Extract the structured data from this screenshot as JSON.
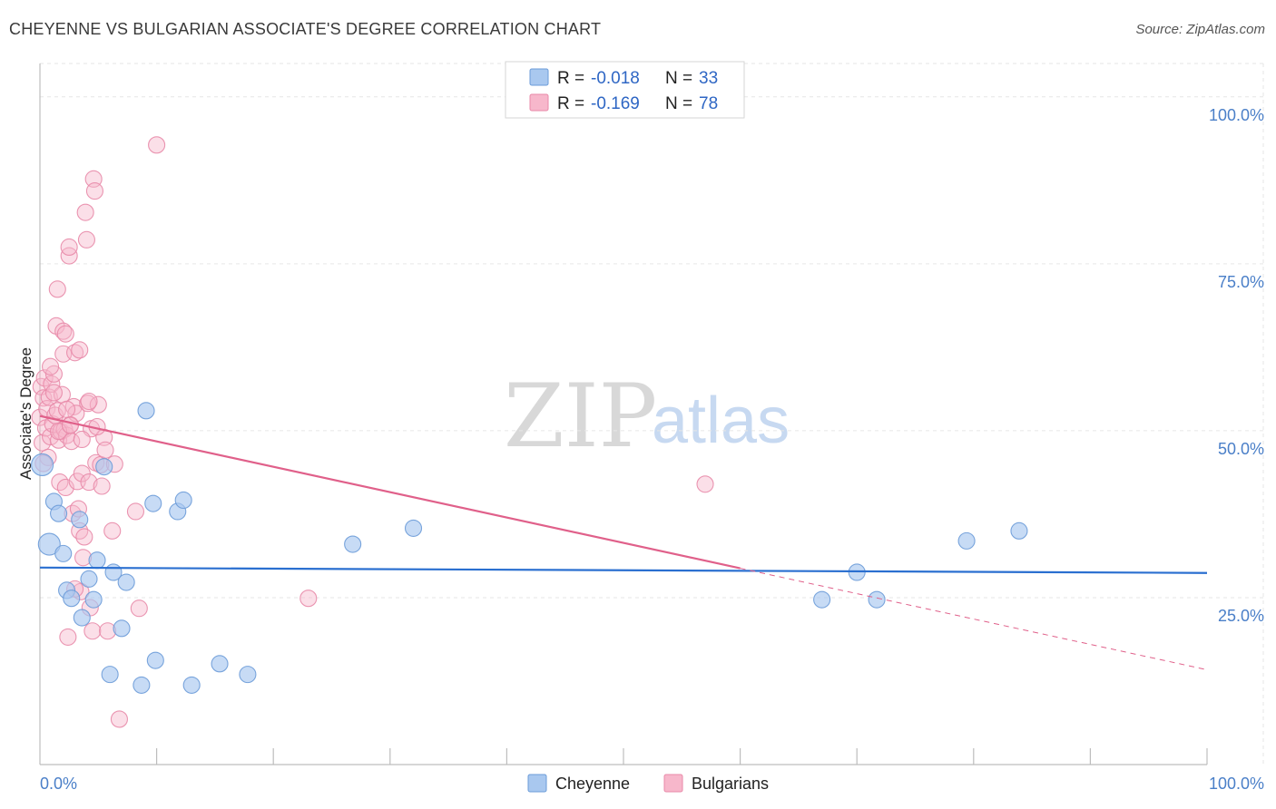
{
  "title": "CHEYENNE VS BULGARIAN ASSOCIATE'S DEGREE CORRELATION CHART",
  "source": "Source: ZipAtlas.com",
  "watermark": {
    "zip": "ZIP",
    "atlas": "atlas"
  },
  "colors": {
    "cheyenne_fill": "#a9c8ef",
    "cheyenne_stroke": "#6b9bd8",
    "cheyenne_line": "#2a6fd0",
    "bulgarian_fill": "#f7b7cb",
    "bulgarian_stroke": "#e88aa8",
    "bulgarian_line": "#e0608a",
    "axis_label": "#4a7fc8",
    "grid": "#e6e6e6"
  },
  "legend": {
    "rows": [
      {
        "r_label": "R = ",
        "r_value": "-0.018",
        "n_label": "N = ",
        "n_value": "33"
      },
      {
        "r_label": "R = ",
        "r_value": "-0.169",
        "n_label": "N = ",
        "n_value": "78"
      }
    ]
  },
  "bottom_legend": {
    "cheyenne": "Cheyenne",
    "bulgarians": "Bulgarians"
  },
  "chart_data": {
    "type": "scatter",
    "title": "CHEYENNE VS BULGARIAN ASSOCIATE'S DEGREE CORRELATION CHART",
    "xlabel": "",
    "ylabel": "Associate's Degree",
    "xlim": [
      0,
      100
    ],
    "ylim": [
      0,
      105
    ],
    "x_tick_labels": {
      "left": "0.0%",
      "right": "100.0%"
    },
    "y_ticks": [
      {
        "value": 25,
        "label": "25.0%"
      },
      {
        "value": 50,
        "label": "50.0%"
      },
      {
        "value": 75,
        "label": "75.0%"
      },
      {
        "value": 100,
        "label": "100.0%"
      }
    ],
    "grid": true,
    "legend_position": "top-center",
    "series": [
      {
        "name": "Cheyenne",
        "R": -0.018,
        "N": 33,
        "trend": {
          "x0": 0,
          "y0": 29.5,
          "x1": 100,
          "y1": 28.7,
          "dashed_after": null
        },
        "points": [
          [
            0.2,
            44.9
          ],
          [
            0.8,
            33.0
          ],
          [
            1.2,
            39.4
          ],
          [
            1.6,
            37.6
          ],
          [
            2.0,
            31.6
          ],
          [
            2.3,
            26.1
          ],
          [
            2.7,
            24.9
          ],
          [
            3.4,
            36.7
          ],
          [
            3.6,
            22.0
          ],
          [
            4.2,
            27.8
          ],
          [
            4.6,
            24.7
          ],
          [
            4.9,
            30.6
          ],
          [
            5.5,
            44.6
          ],
          [
            6.0,
            13.5
          ],
          [
            6.3,
            28.8
          ],
          [
            7.0,
            20.4
          ],
          [
            7.4,
            27.3
          ],
          [
            8.7,
            11.9
          ],
          [
            9.1,
            53.0
          ],
          [
            9.7,
            39.1
          ],
          [
            9.9,
            15.6
          ],
          [
            11.8,
            37.9
          ],
          [
            12.3,
            39.6
          ],
          [
            13.0,
            11.9
          ],
          [
            15.4,
            15.1
          ],
          [
            17.8,
            13.5
          ],
          [
            26.8,
            33.0
          ],
          [
            32.0,
            35.4
          ],
          [
            67.0,
            24.7
          ],
          [
            70.0,
            28.8
          ],
          [
            71.7,
            24.7
          ],
          [
            79.4,
            33.5
          ],
          [
            83.9,
            35.0
          ]
        ]
      },
      {
        "name": "Bulgarians",
        "R": -0.169,
        "N": 78,
        "trend": {
          "x0": 0,
          "y0": 52.2,
          "x1": 60,
          "y1": 29.4,
          "dashed_to_x": 100,
          "dashed_to_y": 14.2
        },
        "points": [
          [
            0.0,
            52.0
          ],
          [
            0.1,
            56.6
          ],
          [
            0.2,
            48.2
          ],
          [
            0.3,
            54.9
          ],
          [
            0.4,
            57.9
          ],
          [
            0.5,
            50.4
          ],
          [
            0.6,
            53.3
          ],
          [
            0.7,
            46.0
          ],
          [
            0.8,
            55.0
          ],
          [
            0.9,
            49.1
          ],
          [
            1.0,
            57.0
          ],
          [
            1.1,
            51.0
          ],
          [
            1.2,
            58.5
          ],
          [
            1.3,
            52.3
          ],
          [
            1.4,
            65.7
          ],
          [
            1.5,
            53.0
          ],
          [
            1.5,
            71.2
          ],
          [
            1.6,
            48.6
          ],
          [
            1.7,
            42.3
          ],
          [
            1.8,
            49.9
          ],
          [
            1.9,
            55.4
          ],
          [
            2.0,
            61.5
          ],
          [
            2.0,
            64.9
          ],
          [
            2.1,
            50.2
          ],
          [
            2.2,
            64.5
          ],
          [
            2.2,
            41.5
          ],
          [
            2.3,
            49.3
          ],
          [
            2.4,
            19.1
          ],
          [
            2.5,
            76.2
          ],
          [
            2.5,
            77.5
          ],
          [
            2.6,
            50.9
          ],
          [
            2.7,
            48.4
          ],
          [
            2.8,
            37.6
          ],
          [
            2.9,
            53.6
          ],
          [
            3.0,
            61.7
          ],
          [
            3.1,
            52.6
          ],
          [
            3.2,
            42.4
          ],
          [
            3.3,
            38.3
          ],
          [
            3.4,
            35.0
          ],
          [
            3.5,
            25.9
          ],
          [
            3.6,
            43.6
          ],
          [
            3.7,
            31.0
          ],
          [
            3.8,
            34.1
          ],
          [
            3.9,
            82.7
          ],
          [
            4.0,
            78.6
          ],
          [
            4.1,
            54.1
          ],
          [
            4.2,
            42.3
          ],
          [
            4.3,
            23.5
          ],
          [
            4.4,
            50.3
          ],
          [
            4.5,
            20.0
          ],
          [
            4.6,
            87.7
          ],
          [
            4.7,
            85.9
          ],
          [
            4.8,
            45.2
          ],
          [
            5.0,
            53.9
          ],
          [
            5.2,
            44.9
          ],
          [
            5.5,
            49.0
          ],
          [
            5.6,
            47.1
          ],
          [
            5.8,
            20.0
          ],
          [
            6.2,
            35.0
          ],
          [
            6.4,
            45.0
          ],
          [
            6.8,
            6.8
          ],
          [
            8.2,
            37.9
          ],
          [
            8.5,
            23.4
          ],
          [
            10.0,
            92.8
          ],
          [
            23.0,
            24.9
          ],
          [
            57.0,
            42.0
          ],
          [
            0.3,
            45.1
          ],
          [
            0.9,
            59.6
          ],
          [
            1.6,
            49.9
          ],
          [
            2.3,
            53.2
          ],
          [
            3.0,
            26.3
          ],
          [
            3.6,
            48.7
          ],
          [
            4.2,
            54.4
          ],
          [
            4.9,
            50.6
          ],
          [
            1.2,
            55.7
          ],
          [
            2.6,
            50.8
          ],
          [
            5.3,
            41.7
          ],
          [
            3.4,
            62.1
          ]
        ]
      }
    ]
  }
}
